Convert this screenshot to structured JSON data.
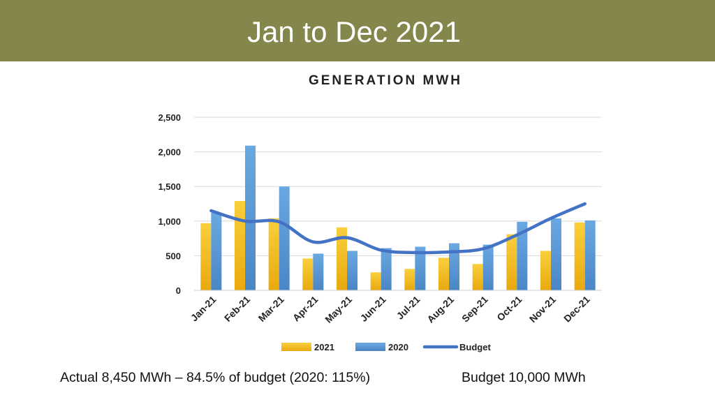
{
  "slide": {
    "title": "Jan to Dec 2021",
    "footer_left": "Actual 8,450 MWh – 84.5% of budget (2020: 115%)",
    "footer_right": "Budget 10,000 MWh"
  },
  "colors": {
    "title_bar": "#85864b",
    "series_2021": "#f5c12a",
    "series_2020": "#5c9bd9",
    "budget": "#4472c4",
    "grid": "#d9d9d9"
  },
  "chart_data": {
    "type": "bar",
    "title": "GENERATION MWH",
    "categories": [
      "Jan-21",
      "Feb-21",
      "Mar-21",
      "Apr-21",
      "May-21",
      "Jun-21",
      "Jul-21",
      "Aug-21",
      "Sep-21",
      "Oct-21",
      "Nov-21",
      "Dec-21"
    ],
    "series": [
      {
        "name": "2021",
        "kind": "bar",
        "values": [
          970,
          1290,
          1040,
          460,
          910,
          260,
          310,
          470,
          380,
          810,
          570,
          980
        ]
      },
      {
        "name": "2020",
        "kind": "bar",
        "values": [
          1120,
          2090,
          1500,
          530,
          570,
          610,
          630,
          680,
          660,
          990,
          1040,
          1010
        ]
      },
      {
        "name": "Budget",
        "kind": "line",
        "values": [
          1150,
          1000,
          990,
          700,
          760,
          580,
          545,
          555,
          600,
          800,
          1040,
          1250
        ]
      }
    ],
    "yticks": [
      "0",
      "500",
      "1,000",
      "1,500",
      "2,000",
      "2,500"
    ],
    "ylim": [
      0,
      2500
    ],
    "xlabel": "",
    "ylabel": "",
    "legend_position": "bottom"
  }
}
